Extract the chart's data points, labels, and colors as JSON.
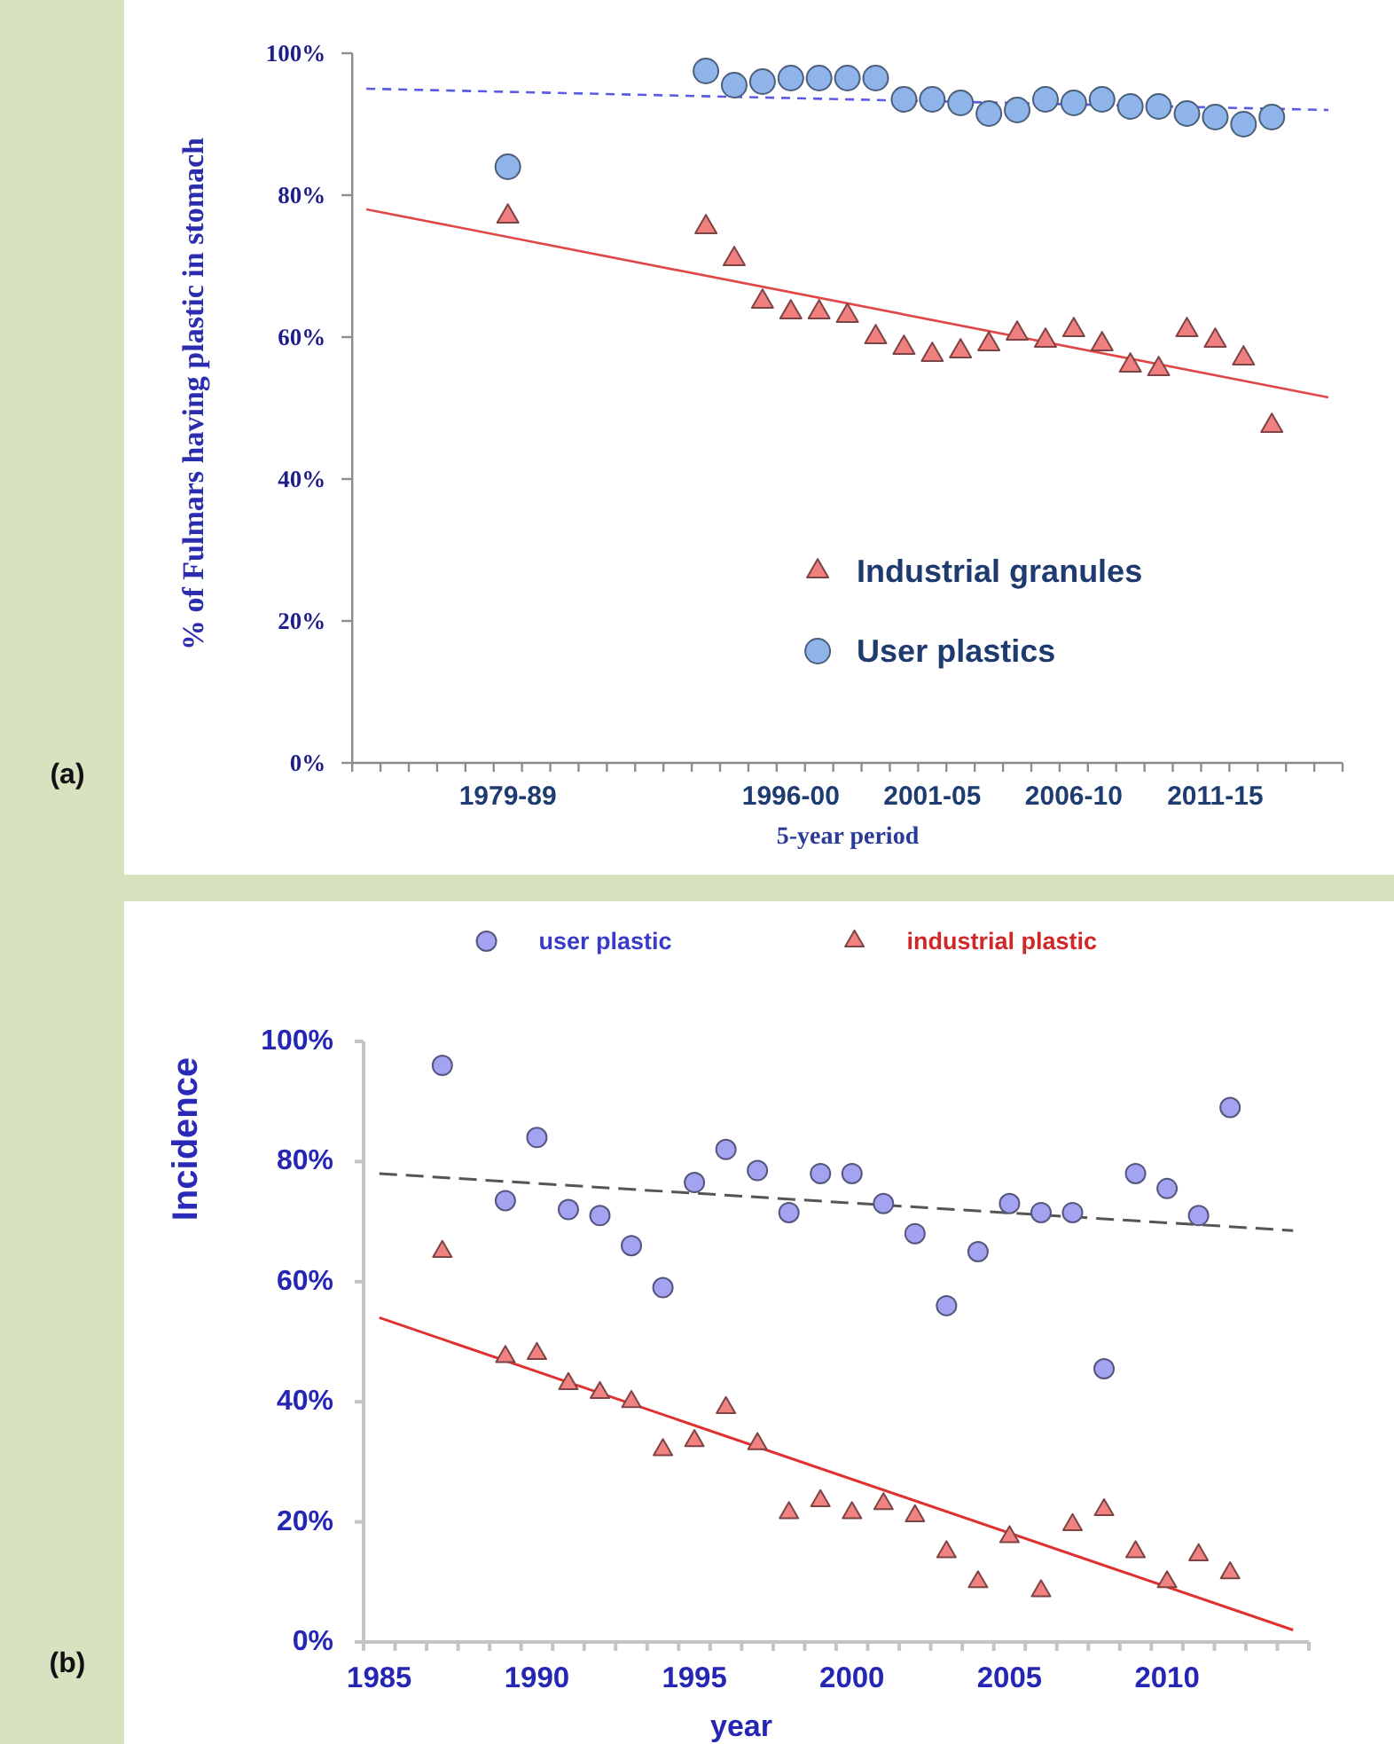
{
  "chart_data": [
    {
      "type": "scatter",
      "annotations": [
        "(a)"
      ],
      "ylabel": "% of Fulmars having plastic in stomach",
      "xlabel": "5-year period",
      "legend": "right",
      "categories": [
        null,
        null,
        null,
        null,
        null,
        "1979-89",
        null,
        null,
        null,
        null,
        null,
        null,
        null,
        null,
        null,
        "1996-00",
        null,
        null,
        null,
        null,
        "2001-05",
        null,
        null,
        null,
        null,
        "2006-10",
        null,
        null,
        null,
        null,
        "2011-15",
        null,
        null,
        null,
        null
      ],
      "ylim": [
        0,
        100
      ],
      "yticks": [
        {
          "value": 0,
          "label": "0%"
        },
        {
          "value": 20,
          "label": "20%"
        },
        {
          "value": 40,
          "label": "40%"
        },
        {
          "value": 60,
          "label": "60%"
        },
        {
          "value": 80,
          "label": "80%"
        },
        {
          "value": 100,
          "label": "100%"
        }
      ],
      "series": [
        {
          "type": "line",
          "color": "#5a5ae6",
          "line_style": "dashed",
          "values": [
            95,
            null,
            null,
            null,
            null,
            null,
            null,
            null,
            null,
            null,
            null,
            null,
            null,
            null,
            null,
            null,
            null,
            null,
            null,
            null,
            null,
            null,
            null,
            null,
            null,
            null,
            null,
            null,
            null,
            null,
            null,
            null,
            null,
            null,
            92
          ]
        },
        {
          "type": "line",
          "color": "#e04848",
          "line_style": "solid",
          "values": [
            78,
            null,
            null,
            null,
            null,
            null,
            null,
            null,
            null,
            null,
            null,
            null,
            null,
            null,
            null,
            null,
            null,
            null,
            null,
            null,
            null,
            null,
            null,
            null,
            null,
            null,
            null,
            null,
            null,
            null,
            null,
            null,
            null,
            null,
            51.5
          ]
        },
        {
          "name": "Industrial granules",
          "marker": "triangle",
          "color": "#f08080",
          "values": [
            null,
            null,
            null,
            null,
            null,
            77,
            null,
            null,
            null,
            null,
            null,
            null,
            75.5,
            71,
            65,
            63.5,
            63.5,
            63,
            60,
            58.5,
            57.5,
            58,
            59,
            60.5,
            59.5,
            61,
            59,
            56,
            55.5,
            61,
            59.5,
            57,
            47.5,
            null,
            null
          ]
        },
        {
          "name": "User plastics",
          "marker": "circle",
          "color": "#8fb4ea",
          "values": [
            null,
            null,
            null,
            null,
            null,
            84,
            null,
            null,
            null,
            null,
            null,
            null,
            97.5,
            95.5,
            96,
            96.5,
            96.5,
            96.5,
            96.5,
            93.5,
            93.5,
            93,
            91.5,
            92,
            93.5,
            93,
            93.5,
            92.5,
            92.5,
            91.5,
            91,
            90,
            91,
            null,
            null
          ]
        }
      ]
    },
    {
      "type": "scatter",
      "annotations": [
        "(b)"
      ],
      "ylabel": "Incidence",
      "xlabel": "year",
      "legend": "top",
      "categories": [
        "1985",
        null,
        null,
        null,
        null,
        "1990",
        null,
        null,
        null,
        null,
        "1995",
        null,
        null,
        null,
        null,
        "2000",
        null,
        null,
        null,
        null,
        "2005",
        null,
        null,
        null,
        null,
        "2010",
        null,
        null,
        null,
        null
      ],
      "ylim": [
        0,
        100
      ],
      "yticks": [
        {
          "value": 0,
          "label": "0%"
        },
        {
          "value": 20,
          "label": "20%"
        },
        {
          "value": 40,
          "label": "40%"
        },
        {
          "value": 60,
          "label": "60%"
        },
        {
          "value": 80,
          "label": "80%"
        },
        {
          "value": 100,
          "label": "100%"
        }
      ],
      "series": [
        {
          "type": "line",
          "color": "#555555",
          "line_style": "dashed",
          "values": [
            78,
            null,
            null,
            null,
            null,
            null,
            null,
            null,
            null,
            null,
            null,
            null,
            null,
            null,
            null,
            null,
            null,
            null,
            null,
            null,
            null,
            null,
            null,
            null,
            null,
            null,
            null,
            null,
            null,
            68.5
          ]
        },
        {
          "type": "line",
          "color": "#e03030",
          "line_style": "solid",
          "values": [
            54,
            null,
            null,
            null,
            null,
            null,
            null,
            null,
            null,
            null,
            null,
            null,
            null,
            null,
            null,
            null,
            null,
            null,
            null,
            null,
            null,
            null,
            null,
            null,
            null,
            null,
            null,
            null,
            null,
            2
          ]
        },
        {
          "name": "user plastic",
          "marker": "circle",
          "color": "#a3a3f2",
          "values": [
            null,
            null,
            96,
            null,
            73.5,
            84,
            72,
            71,
            66,
            59,
            76.5,
            82,
            78.5,
            71.5,
            78,
            78,
            73,
            68,
            56,
            65,
            73,
            71.5,
            71.5,
            45.5,
            78,
            75.5,
            71,
            89,
            null,
            null
          ]
        },
        {
          "name": "industrial plastic",
          "marker": "triangle",
          "color": "#f08282",
          "values": [
            null,
            null,
            65,
            null,
            47.5,
            48,
            43,
            41.5,
            40,
            32,
            33.5,
            39,
            33,
            21.5,
            23.5,
            21.5,
            23,
            21,
            15,
            10,
            17.5,
            8.5,
            19.5,
            22,
            15,
            10,
            14.5,
            11.5,
            null,
            null
          ]
        }
      ]
    }
  ]
}
